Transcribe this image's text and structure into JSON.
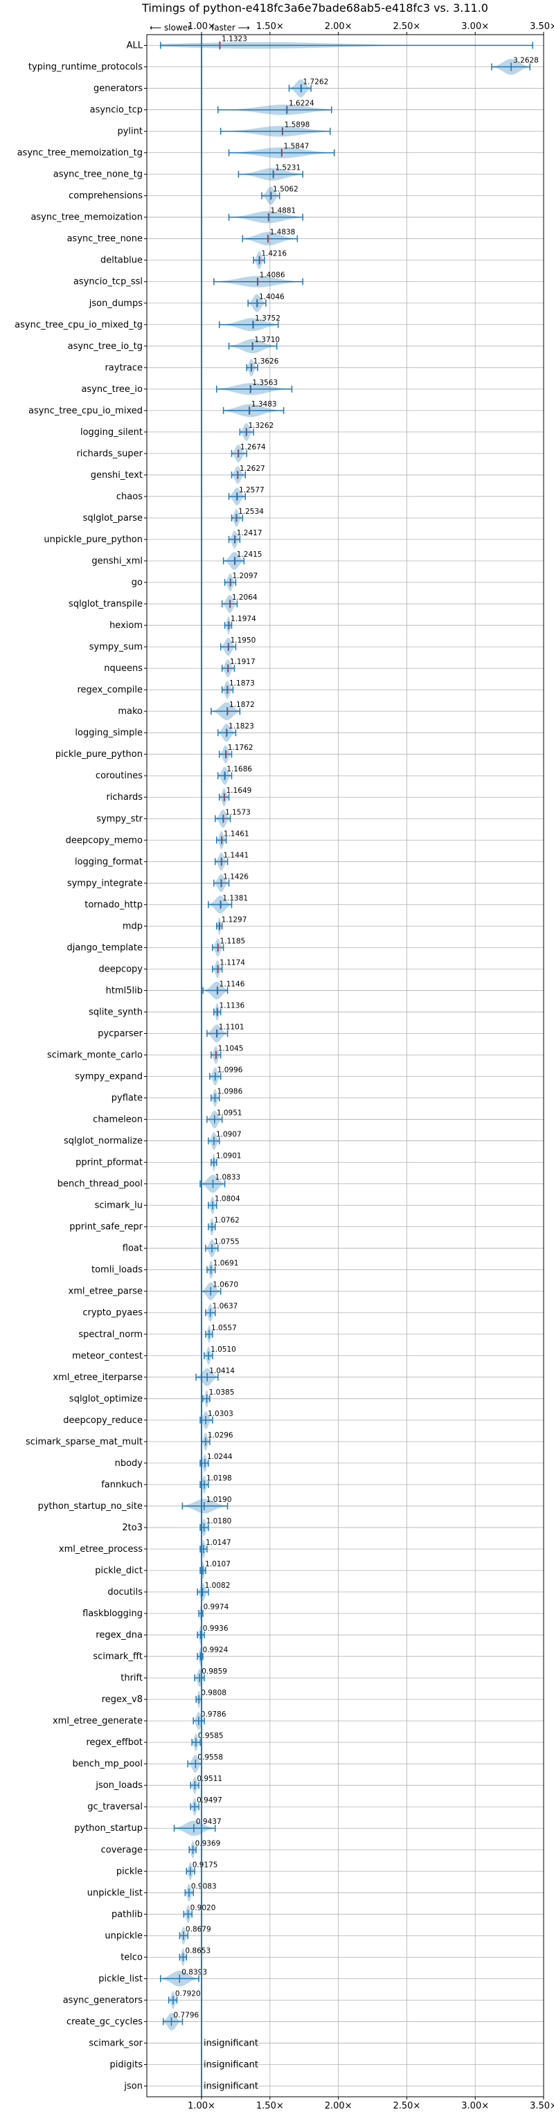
{
  "chart_data": {
    "type": "violin",
    "title": "Timings of python-e418fc3a6e7bade68ab5-e418fc3 vs. 3.11.0",
    "direction_hint": {
      "slower": "⟵ slower",
      "faster": "faster ⟶"
    },
    "xlim": [
      0.6,
      3.5
    ],
    "xticks": [
      1.0,
      1.5,
      2.0,
      2.5,
      3.0,
      3.5
    ],
    "xtick_labels": [
      "1.00×",
      "1.50×",
      "2.00×",
      "2.50×",
      "3.00×",
      "3.50×"
    ],
    "grid": true,
    "reference_line": 1.0,
    "colors": {
      "violin": "#1f77b4",
      "slower_mark": "#d62728",
      "grid": "#b0b0b0"
    },
    "benchmarks": [
      {
        "name": "ALL",
        "value": 1.1323,
        "label": "1.1323",
        "min": 0.7,
        "max": 3.42
      },
      {
        "name": "typing_runtime_protocols",
        "value": 3.2628,
        "label": "3.2628",
        "min": 3.12,
        "max": 3.4
      },
      {
        "name": "generators",
        "value": 1.7262,
        "label": "1.7262",
        "min": 1.64,
        "max": 1.8
      },
      {
        "name": "asyncio_tcp",
        "value": 1.6224,
        "label": "1.6224",
        "min": 1.12,
        "max": 1.95
      },
      {
        "name": "pylint",
        "value": 1.5898,
        "label": "1.5898",
        "min": 1.14,
        "max": 1.94
      },
      {
        "name": "async_tree_memoization_tg",
        "value": 1.5847,
        "label": "1.5847",
        "min": 1.2,
        "max": 1.97
      },
      {
        "name": "async_tree_none_tg",
        "value": 1.5231,
        "label": "1.5231",
        "min": 1.27,
        "max": 1.74
      },
      {
        "name": "comprehensions",
        "value": 1.5062,
        "label": "1.5062",
        "min": 1.44,
        "max": 1.57
      },
      {
        "name": "async_tree_memoization",
        "value": 1.4881,
        "label": "1.4881",
        "min": 1.2,
        "max": 1.74
      },
      {
        "name": "async_tree_none",
        "value": 1.4838,
        "label": "1.4838",
        "min": 1.3,
        "max": 1.7
      },
      {
        "name": "deltablue",
        "value": 1.4216,
        "label": "1.4216",
        "min": 1.38,
        "max": 1.46
      },
      {
        "name": "asyncio_tcp_ssl",
        "value": 1.4086,
        "label": "1.4086",
        "min": 1.09,
        "max": 1.74
      },
      {
        "name": "json_dumps",
        "value": 1.4046,
        "label": "1.4046",
        "min": 1.34,
        "max": 1.47
      },
      {
        "name": "async_tree_cpu_io_mixed_tg",
        "value": 1.3752,
        "label": "1.3752",
        "min": 1.13,
        "max": 1.56
      },
      {
        "name": "async_tree_io_tg",
        "value": 1.371,
        "label": "1.3710",
        "min": 1.2,
        "max": 1.55
      },
      {
        "name": "raytrace",
        "value": 1.3626,
        "label": "1.3626",
        "min": 1.33,
        "max": 1.41
      },
      {
        "name": "async_tree_io",
        "value": 1.3563,
        "label": "1.3563",
        "min": 1.11,
        "max": 1.66
      },
      {
        "name": "async_tree_cpu_io_mixed",
        "value": 1.3483,
        "label": "1.3483",
        "min": 1.16,
        "max": 1.6
      },
      {
        "name": "logging_silent",
        "value": 1.3262,
        "label": "1.3262",
        "min": 1.28,
        "max": 1.38
      },
      {
        "name": "richards_super",
        "value": 1.2674,
        "label": "1.2674",
        "min": 1.22,
        "max": 1.33
      },
      {
        "name": "genshi_text",
        "value": 1.2627,
        "label": "1.2627",
        "min": 1.22,
        "max": 1.32
      },
      {
        "name": "chaos",
        "value": 1.2577,
        "label": "1.2577",
        "min": 1.2,
        "max": 1.32
      },
      {
        "name": "sqlglot_parse",
        "value": 1.2534,
        "label": "1.2534",
        "min": 1.22,
        "max": 1.3
      },
      {
        "name": "unpickle_pure_python",
        "value": 1.2417,
        "label": "1.2417",
        "min": 1.2,
        "max": 1.28
      },
      {
        "name": "genshi_xml",
        "value": 1.2415,
        "label": "1.2415",
        "min": 1.16,
        "max": 1.31
      },
      {
        "name": "go",
        "value": 1.2097,
        "label": "1.2097",
        "min": 1.17,
        "max": 1.25
      },
      {
        "name": "sqlglot_transpile",
        "value": 1.2064,
        "label": "1.2064",
        "min": 1.15,
        "max": 1.26
      },
      {
        "name": "hexiom",
        "value": 1.1974,
        "label": "1.1974",
        "min": 1.17,
        "max": 1.22
      },
      {
        "name": "sympy_sum",
        "value": 1.195,
        "label": "1.1950",
        "min": 1.14,
        "max": 1.25
      },
      {
        "name": "nqueens",
        "value": 1.1917,
        "label": "1.1917",
        "min": 1.15,
        "max": 1.24
      },
      {
        "name": "regex_compile",
        "value": 1.1873,
        "label": "1.1873",
        "min": 1.15,
        "max": 1.23
      },
      {
        "name": "mako",
        "value": 1.1872,
        "label": "1.1872",
        "min": 1.07,
        "max": 1.28
      },
      {
        "name": "logging_simple",
        "value": 1.1823,
        "label": "1.1823",
        "min": 1.12,
        "max": 1.25
      },
      {
        "name": "pickle_pure_python",
        "value": 1.1762,
        "label": "1.1762",
        "min": 1.13,
        "max": 1.22
      },
      {
        "name": "coroutines",
        "value": 1.1686,
        "label": "1.1686",
        "min": 1.12,
        "max": 1.22
      },
      {
        "name": "richards",
        "value": 1.1649,
        "label": "1.1649",
        "min": 1.13,
        "max": 1.2
      },
      {
        "name": "sympy_str",
        "value": 1.1573,
        "label": "1.1573",
        "min": 1.1,
        "max": 1.21
      },
      {
        "name": "deepcopy_memo",
        "value": 1.1461,
        "label": "1.1461",
        "min": 1.11,
        "max": 1.18
      },
      {
        "name": "logging_format",
        "value": 1.1441,
        "label": "1.1441",
        "min": 1.1,
        "max": 1.19
      },
      {
        "name": "sympy_integrate",
        "value": 1.1426,
        "label": "1.1426",
        "min": 1.09,
        "max": 1.2
      },
      {
        "name": "tornado_http",
        "value": 1.1381,
        "label": "1.1381",
        "min": 1.05,
        "max": 1.22
      },
      {
        "name": "mdp",
        "value": 1.1297,
        "label": "1.1297",
        "min": 1.11,
        "max": 1.15
      },
      {
        "name": "django_template",
        "value": 1.1185,
        "label": "1.1185",
        "min": 1.08,
        "max": 1.16
      },
      {
        "name": "deepcopy",
        "value": 1.1174,
        "label": "1.1174",
        "min": 1.08,
        "max": 1.15
      },
      {
        "name": "html5lib",
        "value": 1.1146,
        "label": "1.1146",
        "min": 1.01,
        "max": 1.19
      },
      {
        "name": "sqlite_synth",
        "value": 1.1136,
        "label": "1.1136",
        "min": 1.09,
        "max": 1.14
      },
      {
        "name": "pycparser",
        "value": 1.1101,
        "label": "1.1101",
        "min": 1.04,
        "max": 1.19
      },
      {
        "name": "scimark_monte_carlo",
        "value": 1.1045,
        "label": "1.1045",
        "min": 1.07,
        "max": 1.14
      },
      {
        "name": "sympy_expand",
        "value": 1.0996,
        "label": "1.0996",
        "min": 1.06,
        "max": 1.14
      },
      {
        "name": "pyflate",
        "value": 1.0986,
        "label": "1.0986",
        "min": 1.07,
        "max": 1.13
      },
      {
        "name": "chameleon",
        "value": 1.0951,
        "label": "1.0951",
        "min": 1.04,
        "max": 1.15
      },
      {
        "name": "sqlglot_normalize",
        "value": 1.0907,
        "label": "1.0907",
        "min": 1.05,
        "max": 1.13
      },
      {
        "name": "pprint_pformat",
        "value": 1.0901,
        "label": "1.0901",
        "min": 1.07,
        "max": 1.11
      },
      {
        "name": "bench_thread_pool",
        "value": 1.0833,
        "label": "1.0833",
        "min": 0.99,
        "max": 1.17
      },
      {
        "name": "scimark_lu",
        "value": 1.0804,
        "label": "1.0804",
        "min": 1.05,
        "max": 1.11
      },
      {
        "name": "pprint_safe_repr",
        "value": 1.0762,
        "label": "1.0762",
        "min": 1.05,
        "max": 1.1
      },
      {
        "name": "float",
        "value": 1.0755,
        "label": "1.0755",
        "min": 1.03,
        "max": 1.12
      },
      {
        "name": "tomli_loads",
        "value": 1.0691,
        "label": "1.0691",
        "min": 1.04,
        "max": 1.1
      },
      {
        "name": "xml_etree_parse",
        "value": 1.067,
        "label": "1.0670",
        "min": 1.0,
        "max": 1.14
      },
      {
        "name": "crypto_pyaes",
        "value": 1.0637,
        "label": "1.0637",
        "min": 1.03,
        "max": 1.1
      },
      {
        "name": "spectral_norm",
        "value": 1.0557,
        "label": "1.0557",
        "min": 1.03,
        "max": 1.08
      },
      {
        "name": "meteor_contest",
        "value": 1.051,
        "label": "1.0510",
        "min": 1.02,
        "max": 1.08
      },
      {
        "name": "xml_etree_iterparse",
        "value": 1.0414,
        "label": "1.0414",
        "min": 0.96,
        "max": 1.12
      },
      {
        "name": "sqlglot_optimize",
        "value": 1.0385,
        "label": "1.0385",
        "min": 1.01,
        "max": 1.06
      },
      {
        "name": "deepcopy_reduce",
        "value": 1.0303,
        "label": "1.0303",
        "min": 0.99,
        "max": 1.08
      },
      {
        "name": "scimark_sparse_mat_mult",
        "value": 1.0296,
        "label": "1.0296",
        "min": 1.0,
        "max": 1.06
      },
      {
        "name": "nbody",
        "value": 1.0244,
        "label": "1.0244",
        "min": 0.99,
        "max": 1.05
      },
      {
        "name": "fannkuch",
        "value": 1.0198,
        "label": "1.0198",
        "min": 0.99,
        "max": 1.05
      },
      {
        "name": "python_startup_no_site",
        "value": 1.019,
        "label": "1.0190",
        "min": 0.86,
        "max": 1.19
      },
      {
        "name": "2to3",
        "value": 1.018,
        "label": "1.0180",
        "min": 0.99,
        "max": 1.05
      },
      {
        "name": "xml_etree_process",
        "value": 1.0147,
        "label": "1.0147",
        "min": 0.99,
        "max": 1.04
      },
      {
        "name": "pickle_dict",
        "value": 1.0107,
        "label": "1.0107",
        "min": 0.99,
        "max": 1.03
      },
      {
        "name": "docutils",
        "value": 1.0082,
        "label": "1.0082",
        "min": 0.97,
        "max": 1.05
      },
      {
        "name": "flaskblogging",
        "value": 0.9974,
        "label": "0.9974",
        "min": 0.98,
        "max": 1.01
      },
      {
        "name": "regex_dna",
        "value": 0.9936,
        "label": "0.9936",
        "min": 0.97,
        "max": 1.02
      },
      {
        "name": "scimark_fft",
        "value": 0.9924,
        "label": "0.9924",
        "min": 0.97,
        "max": 1.01
      },
      {
        "name": "thrift",
        "value": 0.9859,
        "label": "0.9859",
        "min": 0.95,
        "max": 1.02
      },
      {
        "name": "regex_v8",
        "value": 0.9808,
        "label": "0.9808",
        "min": 0.96,
        "max": 1.0
      },
      {
        "name": "xml_etree_generate",
        "value": 0.9786,
        "label": "0.9786",
        "min": 0.94,
        "max": 1.02
      },
      {
        "name": "regex_effbot",
        "value": 0.9585,
        "label": "0.9585",
        "min": 0.93,
        "max": 0.99
      },
      {
        "name": "bench_mp_pool",
        "value": 0.9558,
        "label": "0.9558",
        "min": 0.9,
        "max": 1.0
      },
      {
        "name": "json_loads",
        "value": 0.9511,
        "label": "0.9511",
        "min": 0.92,
        "max": 0.98
      },
      {
        "name": "gc_traversal",
        "value": 0.9497,
        "label": "0.9497",
        "min": 0.92,
        "max": 0.98
      },
      {
        "name": "python_startup",
        "value": 0.9437,
        "label": "0.9437",
        "min": 0.8,
        "max": 1.1
      },
      {
        "name": "coverage",
        "value": 0.9369,
        "label": "0.9369",
        "min": 0.91,
        "max": 0.96
      },
      {
        "name": "pickle",
        "value": 0.9175,
        "label": "0.9175",
        "min": 0.89,
        "max": 0.95
      },
      {
        "name": "unpickle_list",
        "value": 0.9083,
        "label": "0.9083",
        "min": 0.88,
        "max": 0.94
      },
      {
        "name": "pathlib",
        "value": 0.902,
        "label": "0.9020",
        "min": 0.87,
        "max": 0.93
      },
      {
        "name": "unpickle",
        "value": 0.8679,
        "label": "0.8679",
        "min": 0.84,
        "max": 0.9
      },
      {
        "name": "telco",
        "value": 0.8653,
        "label": "0.8653",
        "min": 0.84,
        "max": 0.89
      },
      {
        "name": "pickle_list",
        "value": 0.8393,
        "label": "0.8393",
        "min": 0.7,
        "max": 0.98
      },
      {
        "name": "async_generators",
        "value": 0.792,
        "label": "0.7920",
        "min": 0.76,
        "max": 0.82
      },
      {
        "name": "create_gc_cycles",
        "value": 0.7796,
        "label": "0.7796",
        "min": 0.72,
        "max": 0.86
      },
      {
        "name": "scimark_sor",
        "value": null,
        "label": "insignificant"
      },
      {
        "name": "pidigits",
        "value": null,
        "label": "insignificant"
      },
      {
        "name": "json",
        "value": null,
        "label": "insignificant"
      }
    ]
  }
}
